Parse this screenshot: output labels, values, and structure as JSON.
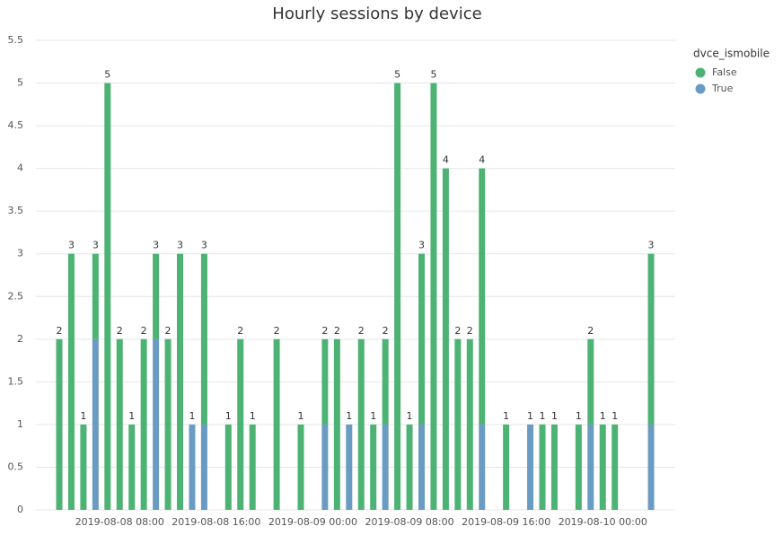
{
  "chart_data": {
    "type": "stacked_bar",
    "title": "Hourly sessions by device",
    "categories": [
      null,
      null,
      null,
      null,
      null,
      "2019-08-08 08:00",
      null,
      null,
      null,
      null,
      null,
      null,
      null,
      "2019-08-08 16:00",
      null,
      null,
      null,
      null,
      null,
      null,
      null,
      "2019-08-09 00:00",
      null,
      null,
      null,
      null,
      null,
      null,
      null,
      "2019-08-09 08:00",
      null,
      null,
      null,
      null,
      null,
      null,
      null,
      "2019-08-09 16:00",
      null,
      null,
      null,
      null,
      null,
      null,
      null,
      "2019-08-10 00:00",
      null,
      null,
      null,
      null
    ],
    "legend_title": "dvce_ismobile",
    "series": [
      {
        "name": "True",
        "color": "#6a9bc3",
        "values": [
          null,
          null,
          null,
          2,
          null,
          null,
          null,
          null,
          2,
          null,
          null,
          1,
          1,
          null,
          null,
          null,
          null,
          null,
          null,
          null,
          null,
          null,
          1,
          null,
          1,
          null,
          null,
          1,
          null,
          null,
          1,
          null,
          null,
          null,
          null,
          1,
          null,
          null,
          null,
          1,
          null,
          null,
          null,
          null,
          1,
          null,
          null,
          null,
          null,
          1
        ]
      },
      {
        "name": "False",
        "color": "#4db374",
        "values": [
          2,
          3,
          1,
          1,
          5,
          2,
          1,
          2,
          1,
          2,
          3,
          null,
          2,
          null,
          1,
          2,
          1,
          null,
          2,
          null,
          1,
          null,
          1,
          2,
          null,
          2,
          1,
          1,
          5,
          1,
          2,
          5,
          4,
          2,
          2,
          3,
          null,
          1,
          null,
          null,
          1,
          1,
          null,
          1,
          1,
          1,
          1,
          null,
          null,
          2
        ]
      }
    ],
    "legend_order": [
      1,
      0
    ],
    "totals": [
      2,
      3,
      1,
      3,
      5,
      2,
      1,
      2,
      3,
      2,
      3,
      1,
      3,
      null,
      1,
      2,
      1,
      null,
      2,
      null,
      1,
      null,
      2,
      2,
      1,
      2,
      1,
      2,
      5,
      1,
      3,
      5,
      4,
      2,
      2,
      4,
      null,
      1,
      null,
      1,
      1,
      1,
      null,
      1,
      2,
      1,
      1,
      null,
      null,
      3
    ],
    "ylim": [
      0,
      5.5
    ],
    "yticks": [
      0,
      0.5,
      1,
      1.5,
      2,
      2.5,
      3,
      3.5,
      4,
      4.5,
      5,
      5.5
    ],
    "grid": true
  }
}
